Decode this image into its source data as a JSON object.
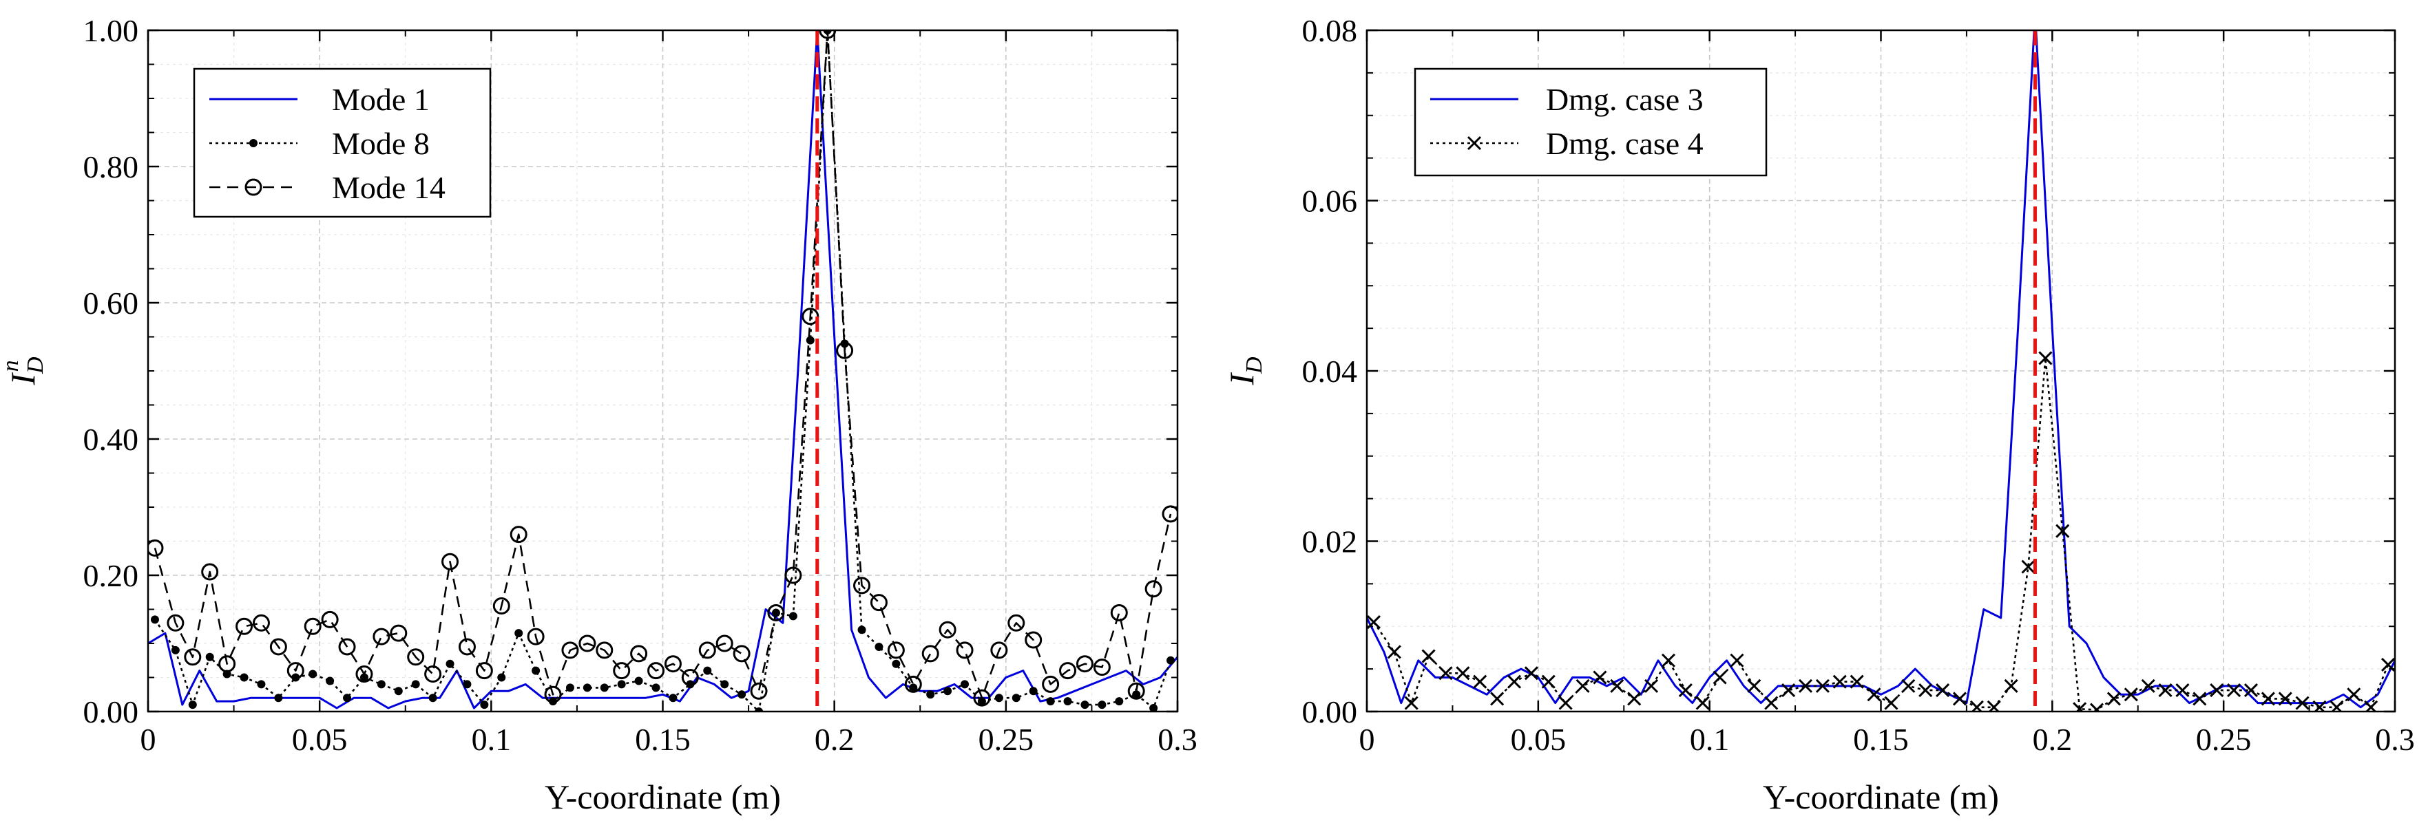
{
  "chart_data": [
    {
      "type": "line",
      "ylabel_main": "I",
      "ylabel_sub": "D",
      "ylabel_sup": "n",
      "xlabel": "Y-coordinate (m)",
      "xlim": [
        0,
        0.3
      ],
      "ylim": [
        0,
        1.0
      ],
      "x_ticks": [
        0,
        0.05,
        0.1,
        0.15,
        0.2,
        0.25,
        0.3
      ],
      "x_tick_labels": [
        "0",
        "0.05",
        "0.1",
        "0.15",
        "0.2",
        "0.25",
        "0.3"
      ],
      "y_ticks": [
        0,
        0.2,
        0.4,
        0.6,
        0.8,
        1.0
      ],
      "y_tick_labels": [
        "0.00",
        "0.20",
        "0.40",
        "0.60",
        "0.80",
        "1.00"
      ],
      "damage_location": 0.195,
      "legend": [
        "Mode 1",
        "Mode 8",
        "Mode 14"
      ],
      "series": [
        {
          "name": "Mode 1",
          "color": "#0000dd",
          "style": "solid",
          "marker": "none",
          "x": [
            0.0,
            0.005,
            0.01,
            0.015,
            0.02,
            0.025,
            0.03,
            0.035,
            0.04,
            0.045,
            0.05,
            0.055,
            0.06,
            0.065,
            0.07,
            0.075,
            0.08,
            0.085,
            0.09,
            0.095,
            0.1,
            0.105,
            0.11,
            0.115,
            0.12,
            0.125,
            0.13,
            0.135,
            0.14,
            0.145,
            0.15,
            0.155,
            0.16,
            0.165,
            0.17,
            0.175,
            0.18,
            0.185,
            0.19,
            0.195,
            0.2,
            0.205,
            0.21,
            0.215,
            0.22,
            0.225,
            0.23,
            0.235,
            0.24,
            0.245,
            0.25,
            0.255,
            0.26,
            0.265,
            0.27,
            0.275,
            0.28,
            0.285,
            0.29,
            0.295,
            0.3
          ],
          "y": [
            0.1,
            0.115,
            0.01,
            0.06,
            0.015,
            0.015,
            0.02,
            0.02,
            0.02,
            0.02,
            0.02,
            0.005,
            0.02,
            0.02,
            0.005,
            0.015,
            0.02,
            0.02,
            0.06,
            0.005,
            0.03,
            0.03,
            0.04,
            0.02,
            0.02,
            0.02,
            0.02,
            0.02,
            0.02,
            0.02,
            0.025,
            0.015,
            0.05,
            0.04,
            0.02,
            0.03,
            0.15,
            0.13,
            0.55,
            1.0,
            0.55,
            0.12,
            0.05,
            0.02,
            0.04,
            0.03,
            0.03,
            0.04,
            0.02,
            0.02,
            0.05,
            0.06,
            0.015,
            0.02,
            0.03,
            0.04,
            0.05,
            0.06,
            0.04,
            0.05,
            0.08
          ]
        },
        {
          "name": "Mode 8",
          "color": "#000000",
          "style": "dotted",
          "marker": "dot",
          "x": [
            0.002,
            0.008,
            0.013,
            0.018,
            0.023,
            0.028,
            0.033,
            0.038,
            0.043,
            0.048,
            0.053,
            0.058,
            0.063,
            0.068,
            0.073,
            0.078,
            0.083,
            0.088,
            0.093,
            0.098,
            0.103,
            0.108,
            0.113,
            0.118,
            0.123,
            0.128,
            0.133,
            0.138,
            0.143,
            0.148,
            0.153,
            0.158,
            0.163,
            0.168,
            0.173,
            0.178,
            0.183,
            0.188,
            0.193,
            0.198,
            0.203,
            0.208,
            0.213,
            0.218,
            0.223,
            0.228,
            0.233,
            0.238,
            0.243,
            0.248,
            0.253,
            0.258,
            0.263,
            0.268,
            0.273,
            0.278,
            0.283,
            0.288,
            0.293,
            0.298
          ],
          "y": [
            0.135,
            0.09,
            0.01,
            0.08,
            0.055,
            0.05,
            0.04,
            0.02,
            0.05,
            0.055,
            0.045,
            0.02,
            0.05,
            0.04,
            0.03,
            0.04,
            0.02,
            0.07,
            0.04,
            0.01,
            0.05,
            0.115,
            0.06,
            0.015,
            0.035,
            0.035,
            0.035,
            0.04,
            0.045,
            0.035,
            0.02,
            0.04,
            0.06,
            0.04,
            0.025,
            0.0,
            0.145,
            0.14,
            0.545,
            1.0,
            0.54,
            0.12,
            0.095,
            0.07,
            0.035,
            0.025,
            0.03,
            0.04,
            0.015,
            0.02,
            0.02,
            0.03,
            0.015,
            0.015,
            0.01,
            0.01,
            0.015,
            0.025,
            0.005,
            0.075
          ]
        },
        {
          "name": "Mode 14",
          "color": "#000000",
          "style": "dashed",
          "marker": "circle",
          "x": [
            0.002,
            0.008,
            0.013,
            0.018,
            0.023,
            0.028,
            0.033,
            0.038,
            0.043,
            0.048,
            0.053,
            0.058,
            0.063,
            0.068,
            0.073,
            0.078,
            0.083,
            0.088,
            0.093,
            0.098,
            0.103,
            0.108,
            0.113,
            0.118,
            0.123,
            0.128,
            0.133,
            0.138,
            0.143,
            0.148,
            0.153,
            0.158,
            0.163,
            0.168,
            0.173,
            0.178,
            0.183,
            0.188,
            0.193,
            0.198,
            0.203,
            0.208,
            0.213,
            0.218,
            0.223,
            0.228,
            0.233,
            0.238,
            0.243,
            0.248,
            0.253,
            0.258,
            0.263,
            0.268,
            0.273,
            0.278,
            0.283,
            0.288,
            0.293,
            0.298
          ],
          "y": [
            0.24,
            0.13,
            0.08,
            0.205,
            0.07,
            0.125,
            0.13,
            0.095,
            0.06,
            0.125,
            0.135,
            0.095,
            0.055,
            0.11,
            0.115,
            0.08,
            0.055,
            0.22,
            0.095,
            0.06,
            0.155,
            0.26,
            0.11,
            0.025,
            0.09,
            0.1,
            0.09,
            0.06,
            0.085,
            0.06,
            0.07,
            0.05,
            0.09,
            0.1,
            0.085,
            0.03,
            0.145,
            0.2,
            0.58,
            1.0,
            0.53,
            0.185,
            0.16,
            0.09,
            0.04,
            0.085,
            0.12,
            0.09,
            0.02,
            0.09,
            0.13,
            0.105,
            0.04,
            0.06,
            0.07,
            0.065,
            0.145,
            0.03,
            0.18,
            0.29
          ]
        }
      ]
    },
    {
      "type": "line",
      "ylabel_main": "I",
      "ylabel_sub": "D",
      "ylabel_sup": "",
      "xlabel": "Y-coordinate (m)",
      "xlim": [
        0,
        0.3
      ],
      "ylim": [
        0,
        0.08
      ],
      "x_ticks": [
        0,
        0.05,
        0.1,
        0.15,
        0.2,
        0.25,
        0.3
      ],
      "x_tick_labels": [
        "0",
        "0.05",
        "0.1",
        "0.15",
        "0.2",
        "0.25",
        "0.3"
      ],
      "y_ticks": [
        0,
        0.02,
        0.04,
        0.06,
        0.08
      ],
      "y_tick_labels": [
        "0.00",
        "0.02",
        "0.04",
        "0.06",
        "0.08"
      ],
      "damage_location": 0.195,
      "legend": [
        "Dmg. case 3",
        "Dmg. case 4"
      ],
      "series": [
        {
          "name": "Dmg. case 3",
          "color": "#0000dd",
          "style": "solid",
          "marker": "none",
          "x": [
            0.0,
            0.005,
            0.01,
            0.015,
            0.02,
            0.025,
            0.03,
            0.035,
            0.04,
            0.045,
            0.05,
            0.055,
            0.06,
            0.065,
            0.07,
            0.075,
            0.08,
            0.085,
            0.09,
            0.095,
            0.1,
            0.105,
            0.11,
            0.115,
            0.12,
            0.125,
            0.13,
            0.135,
            0.14,
            0.145,
            0.15,
            0.155,
            0.16,
            0.165,
            0.17,
            0.175,
            0.18,
            0.185,
            0.19,
            0.195,
            0.2,
            0.205,
            0.21,
            0.215,
            0.22,
            0.225,
            0.23,
            0.235,
            0.24,
            0.245,
            0.25,
            0.255,
            0.26,
            0.265,
            0.27,
            0.275,
            0.28,
            0.285,
            0.29,
            0.295,
            0.3
          ],
          "y": [
            0.011,
            0.007,
            0.001,
            0.006,
            0.004,
            0.004,
            0.003,
            0.002,
            0.004,
            0.005,
            0.004,
            0.001,
            0.004,
            0.004,
            0.003,
            0.004,
            0.002,
            0.006,
            0.003,
            0.001,
            0.004,
            0.006,
            0.003,
            0.001,
            0.003,
            0.003,
            0.003,
            0.003,
            0.003,
            0.003,
            0.002,
            0.003,
            0.005,
            0.003,
            0.002,
            0.001,
            0.012,
            0.011,
            0.045,
            0.082,
            0.045,
            0.01,
            0.008,
            0.004,
            0.002,
            0.002,
            0.003,
            0.003,
            0.001,
            0.002,
            0.003,
            0.003,
            0.001,
            0.001,
            0.001,
            0.001,
            0.001,
            0.002,
            0.0005,
            0.002,
            0.006
          ]
        },
        {
          "name": "Dmg. case 4",
          "color": "#000000",
          "style": "dotted",
          "marker": "x",
          "x": [
            0.002,
            0.008,
            0.013,
            0.018,
            0.023,
            0.028,
            0.033,
            0.038,
            0.043,
            0.048,
            0.053,
            0.058,
            0.063,
            0.068,
            0.073,
            0.078,
            0.083,
            0.088,
            0.093,
            0.098,
            0.103,
            0.108,
            0.113,
            0.118,
            0.123,
            0.128,
            0.133,
            0.138,
            0.143,
            0.148,
            0.153,
            0.158,
            0.163,
            0.168,
            0.173,
            0.178,
            0.183,
            0.188,
            0.193,
            0.198,
            0.203,
            0.208,
            0.213,
            0.218,
            0.223,
            0.228,
            0.233,
            0.238,
            0.243,
            0.248,
            0.253,
            0.258,
            0.263,
            0.268,
            0.273,
            0.278,
            0.283,
            0.288,
            0.293,
            0.298
          ],
          "y": [
            0.0105,
            0.007,
            0.001,
            0.0065,
            0.0045,
            0.0045,
            0.0035,
            0.0015,
            0.0035,
            0.0045,
            0.0035,
            0.001,
            0.003,
            0.004,
            0.003,
            0.0015,
            0.003,
            0.006,
            0.0025,
            0.001,
            0.004,
            0.006,
            0.003,
            0.001,
            0.0025,
            0.003,
            0.003,
            0.0035,
            0.0035,
            0.002,
            0.001,
            0.003,
            0.0025,
            0.0025,
            0.0015,
            0.0005,
            0.0005,
            0.003,
            0.017,
            0.0415,
            0.0212,
            0.0003,
            0.0002,
            0.0015,
            0.002,
            0.003,
            0.0025,
            0.0025,
            0.0015,
            0.0025,
            0.0025,
            0.0025,
            0.0015,
            0.0015,
            0.001,
            0.0005,
            0.0005,
            0.002,
            0.0005,
            0.0055
          ]
        }
      ]
    }
  ]
}
